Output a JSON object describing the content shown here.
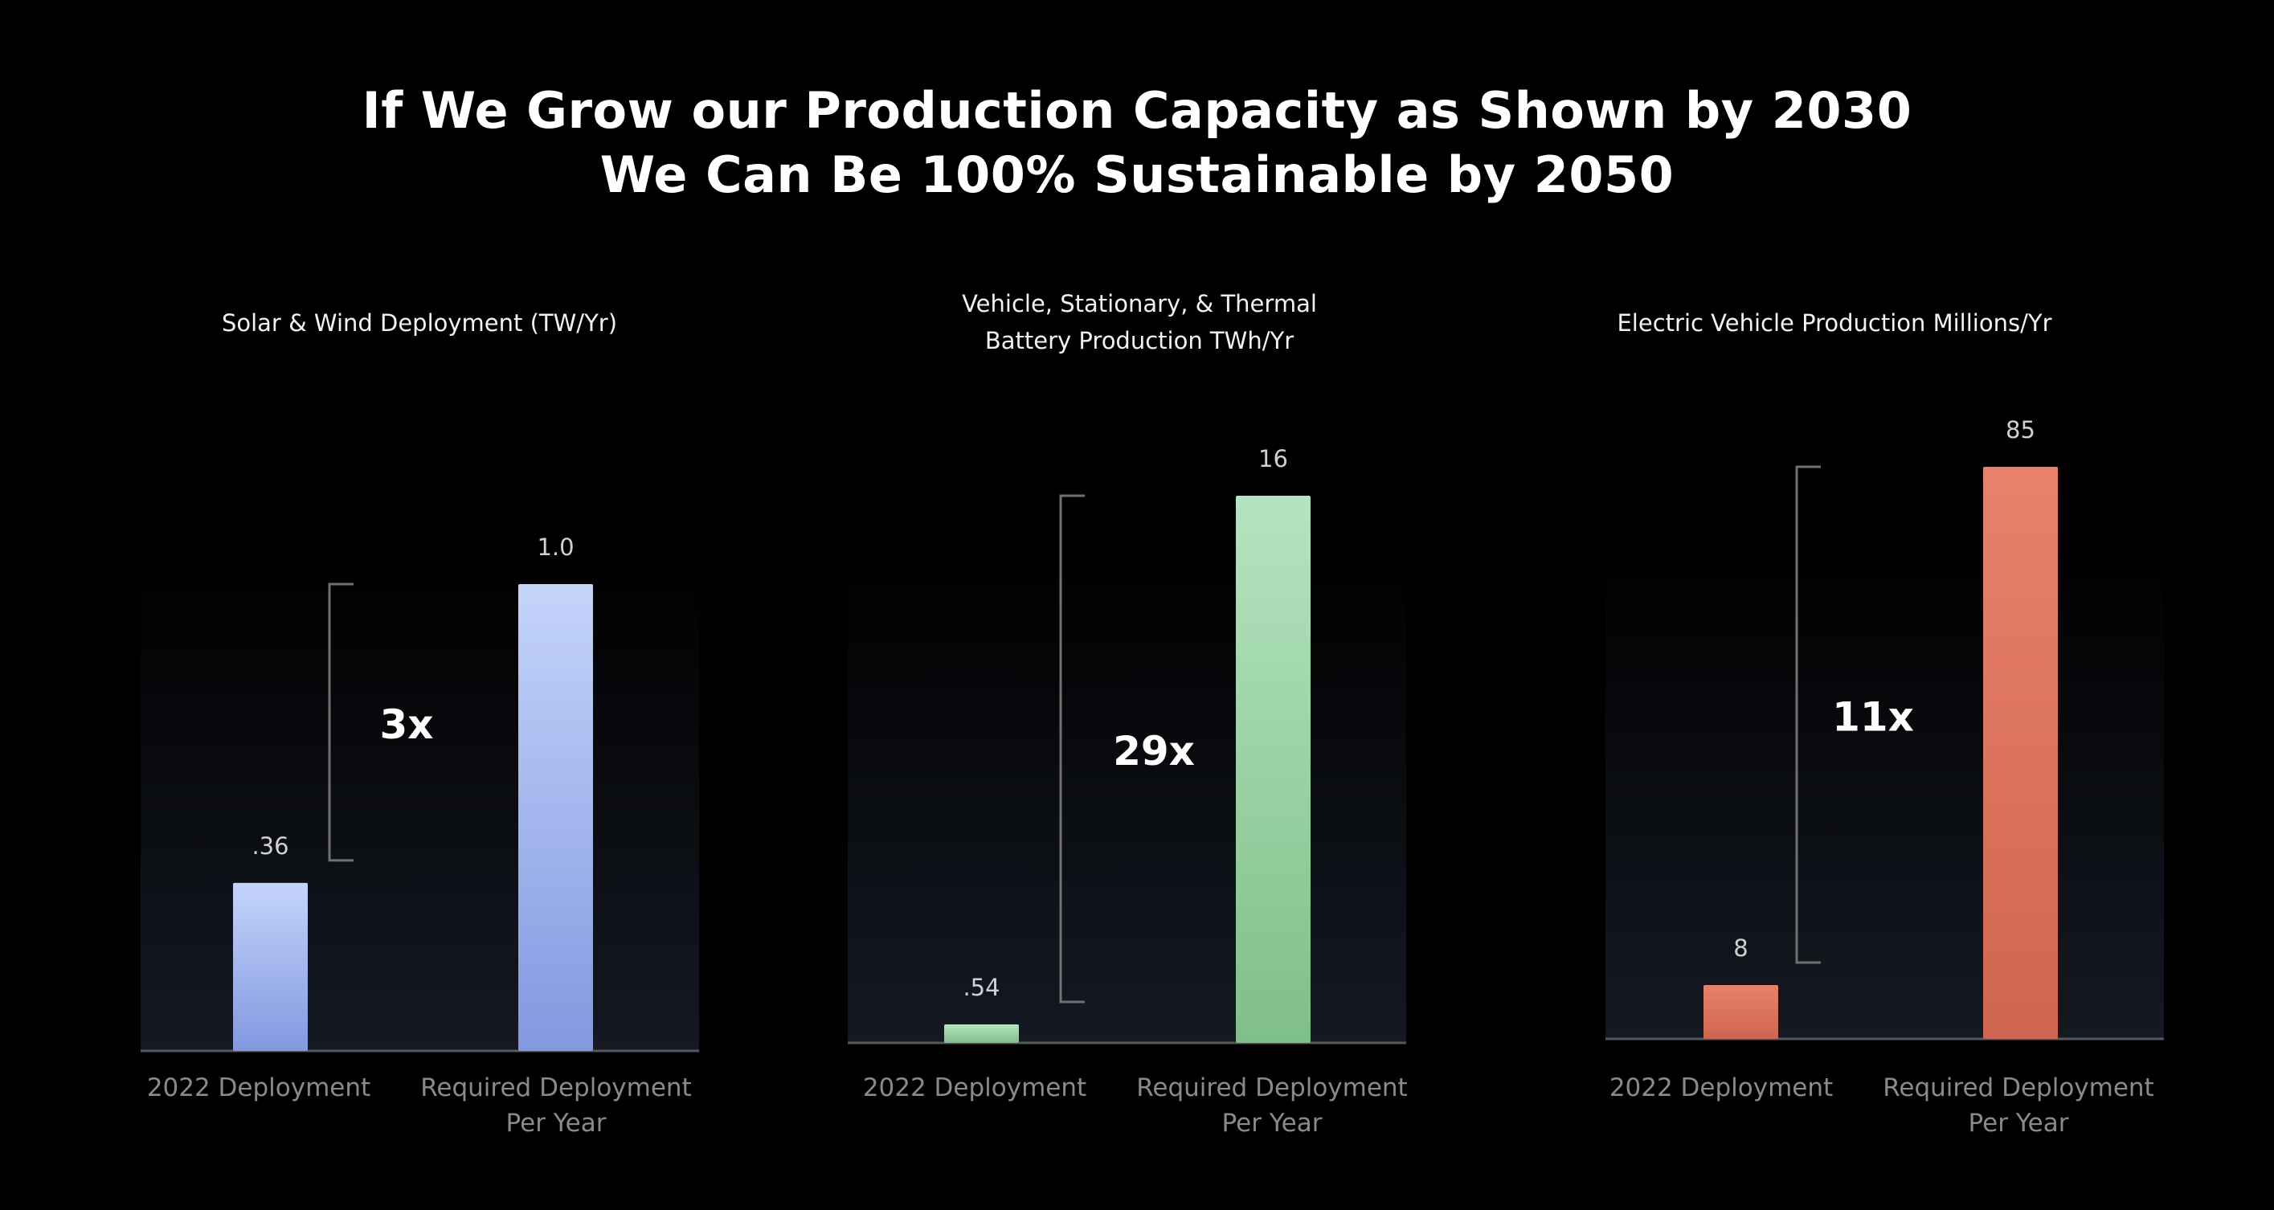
{
  "slide": {
    "title_line1": "If We Grow our Production Capacity as Shown by 2030",
    "title_line2": "We Can Be 100% Sustainable by 2050",
    "background": "#000000"
  },
  "chart_data": [
    {
      "type": "bar",
      "title": [
        "Solar & Wind Deployment (TW/Yr)"
      ],
      "categories": [
        [
          "2022 Deployment"
        ],
        [
          "Required Deployment",
          "Per Year"
        ]
      ],
      "values": [
        0.36,
        1.0
      ],
      "data_labels": [
        ".36",
        "1.0"
      ],
      "multiplier_label": "3x",
      "ylim": [
        0,
        1.0
      ],
      "grid": false,
      "legend": "none",
      "bar_color_top": "#c4d4fa",
      "bar_color_bottom": "#8298e0"
    },
    {
      "type": "bar",
      "title": [
        "Vehicle, Stationary, & Thermal",
        "Battery Production TWh/Yr"
      ],
      "categories": [
        [
          "2022 Deployment"
        ],
        [
          "Required Deployment",
          "Per Year"
        ]
      ],
      "values": [
        0.54,
        16
      ],
      "data_labels": [
        ".54",
        "16"
      ],
      "multiplier_label": "29x",
      "ylim": [
        0,
        16
      ],
      "grid": false,
      "legend": "none",
      "bar_color_top": "#b5e4c0",
      "bar_color_bottom": "#7fbf88"
    },
    {
      "type": "bar",
      "title": [
        "Electric Vehicle Production Millions/Yr"
      ],
      "categories": [
        [
          "2022 Deployment"
        ],
        [
          "Required Deployment",
          "Per Year"
        ]
      ],
      "values": [
        8,
        85
      ],
      "data_labels": [
        "8",
        "85"
      ],
      "multiplier_label": "11x",
      "ylim": [
        0,
        85
      ],
      "grid": false,
      "legend": "none",
      "bar_color_top": "#e8826a",
      "bar_color_bottom": "#cf6550"
    }
  ]
}
